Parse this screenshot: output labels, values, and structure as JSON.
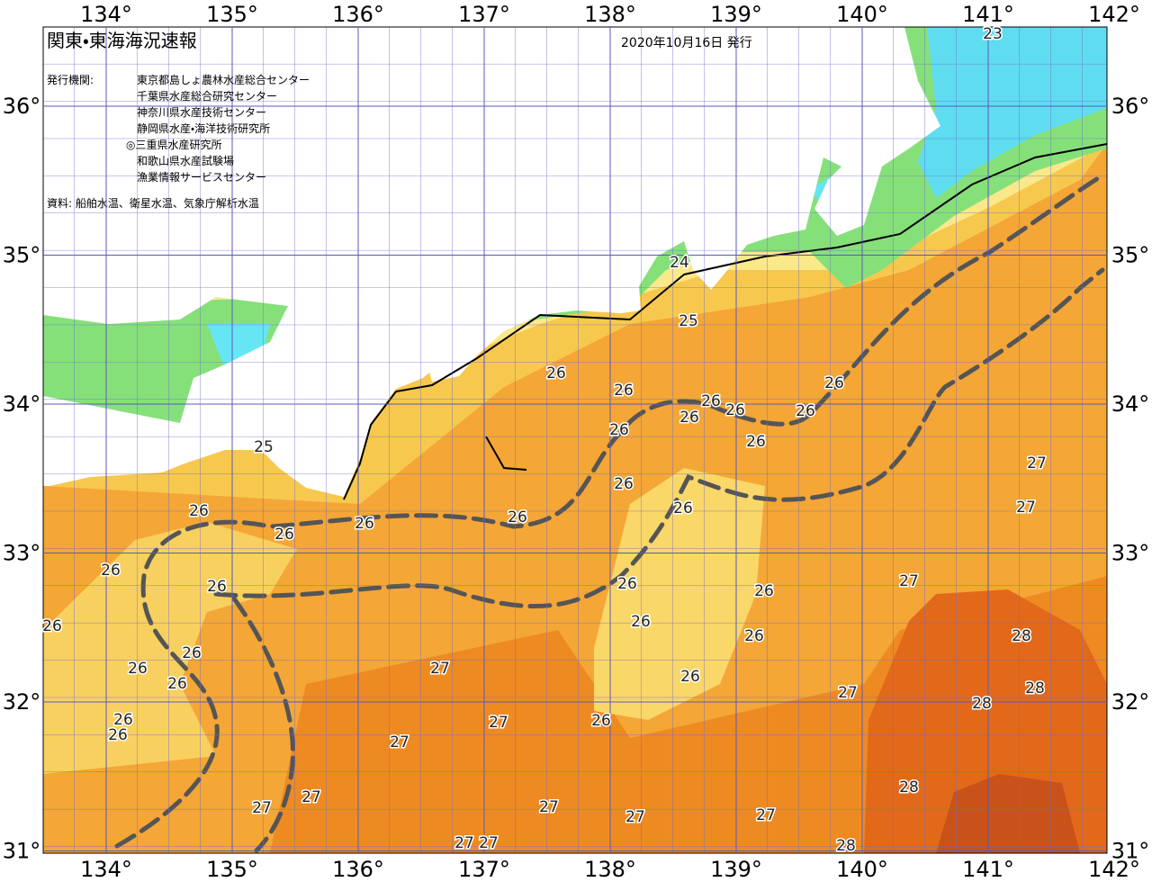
{
  "map": {
    "title": "関東・東海海況速報",
    "date": "2020年10月16日 発行",
    "issuer_label": "発行機関:",
    "issuers": [
      "東京都島しょ農林水産総合センター",
      "千葉県水産総合研究センター",
      "神奈川県水産技術センター",
      "静岡県水産・海洋技術研究所",
      "◎三重県水産研究所",
      "和歌山県水産試験場",
      "漁業情報サービスセンター"
    ],
    "source": "資料: 船舶水温、衛星水温、気象庁解析水温",
    "lon_ticks": [
      {
        "value": 134,
        "label": "134°"
      },
      {
        "value": 135,
        "label": "135°"
      },
      {
        "value": 136,
        "label": "136°"
      },
      {
        "value": 137,
        "label": "137°"
      },
      {
        "value": 138,
        "label": "138°"
      },
      {
        "value": 139,
        "label": "139°"
      },
      {
        "value": 140,
        "label": "140°"
      },
      {
        "value": 141,
        "label": "141°"
      },
      {
        "value": 142,
        "label": "142°"
      }
    ],
    "lat_ticks": [
      {
        "value": 31,
        "label": "31°"
      },
      {
        "value": 32,
        "label": "32°"
      },
      {
        "value": 33,
        "label": "33°"
      },
      {
        "value": 34,
        "label": "34°"
      },
      {
        "value": 35,
        "label": "35°"
      },
      {
        "value": 36,
        "label": "36°"
      }
    ],
    "contour_labels": [
      23,
      24,
      25,
      26,
      26,
      26,
      26,
      26,
      26,
      26,
      26,
      26,
      25,
      27,
      26,
      27,
      26,
      26,
      26,
      26,
      26,
      26,
      27,
      26,
      26,
      26,
      26,
      26,
      26,
      28,
      26,
      26,
      27,
      26,
      26,
      28,
      27,
      28,
      26,
      27,
      26,
      26,
      27,
      28,
      27,
      27,
      27,
      27,
      27,
      27,
      27,
      28
    ]
  }
}
